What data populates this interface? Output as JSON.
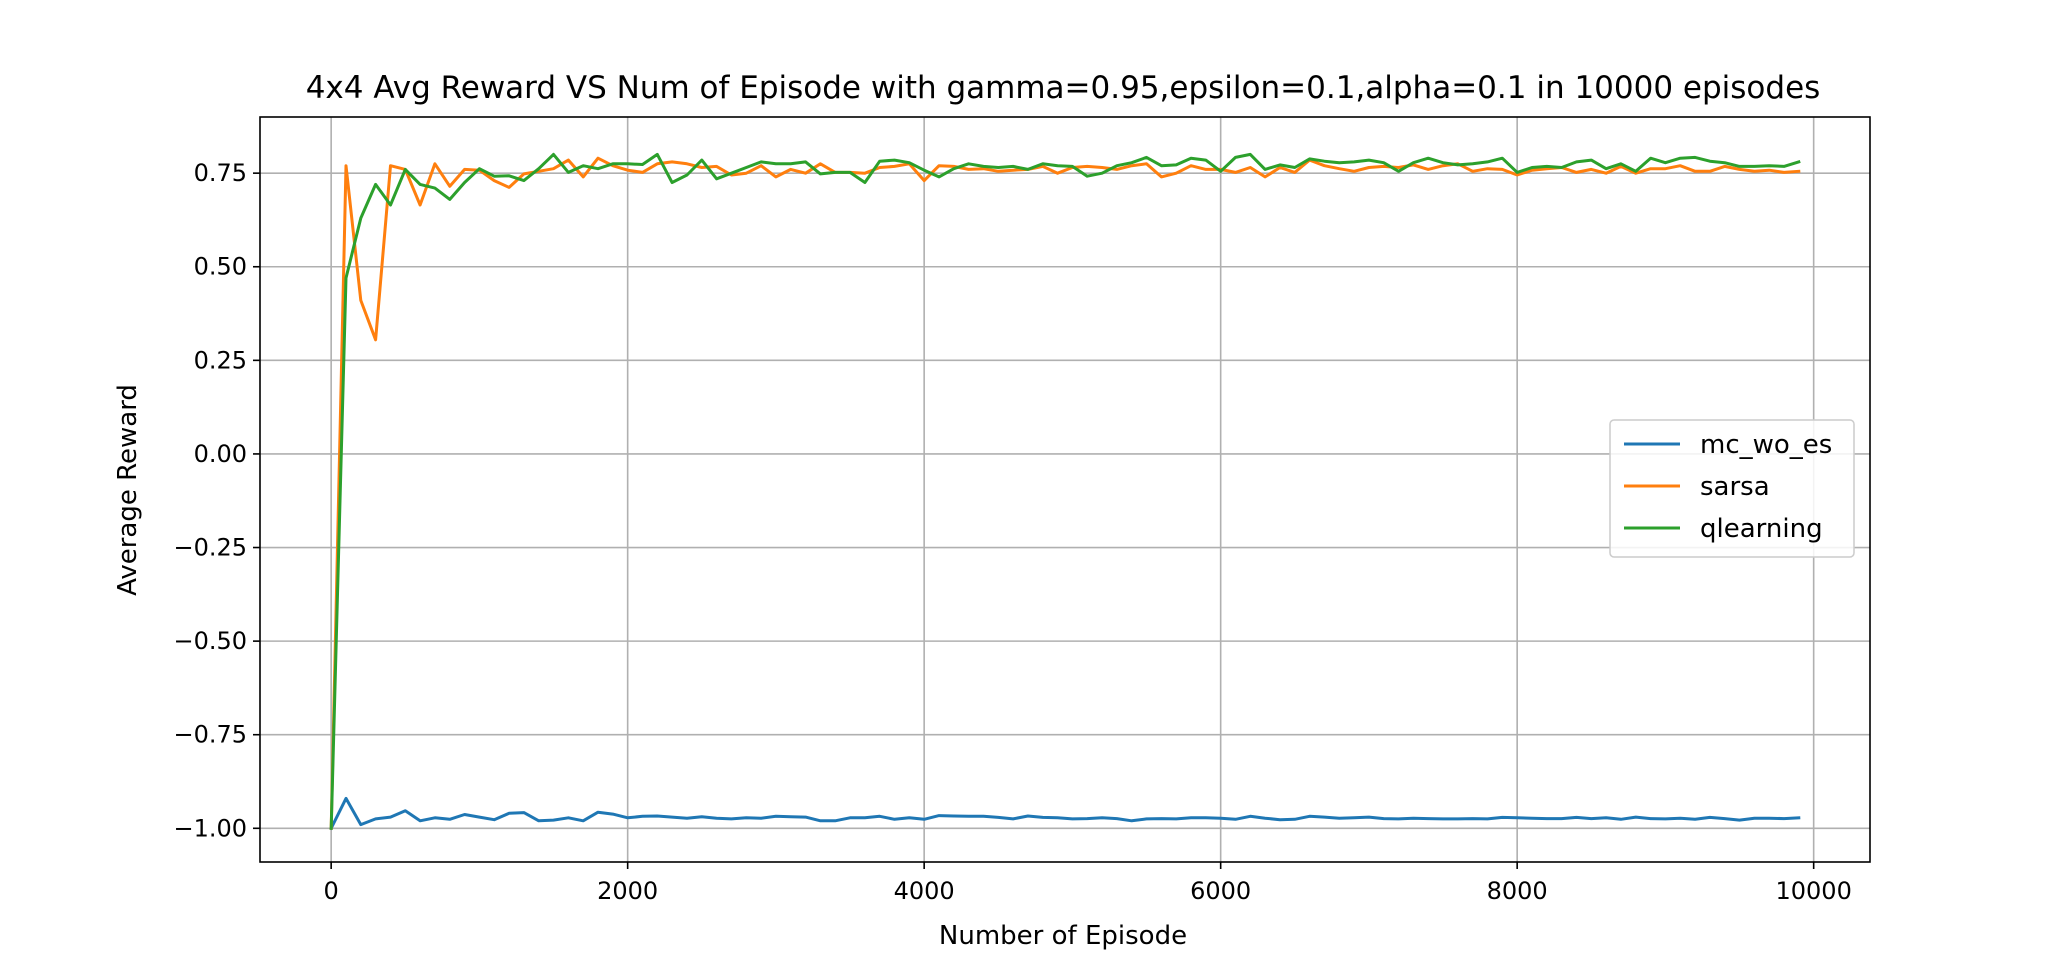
{
  "chart_data": {
    "type": "line",
    "title": "4x4 Avg Reward VS Num of Episode with gamma=0.95,epsilon=0.1,alpha=0.1 in 10000 episodes",
    "xlabel": "Number of Episode",
    "ylabel": "Average Reward",
    "xlim": [
      -480,
      10380
    ],
    "ylim": [
      -1.09,
      0.9
    ],
    "xticks": [
      0,
      2000,
      4000,
      6000,
      8000,
      10000
    ],
    "xtick_labels": [
      "0",
      "2000",
      "4000",
      "6000",
      "8000",
      "10000"
    ],
    "yticks": [
      -1.0,
      -0.75,
      -0.5,
      -0.25,
      0.0,
      0.25,
      0.5,
      0.75
    ],
    "ytick_labels": [
      "−1.00",
      "−0.75",
      "−0.50",
      "−0.25",
      "0.00",
      "0.25",
      "0.50",
      "0.75"
    ],
    "grid": true,
    "legend_position": "center-right",
    "x": [
      0,
      100,
      200,
      300,
      400,
      500,
      600,
      700,
      800,
      900,
      1000,
      1100,
      1200,
      1300,
      1400,
      1500,
      1600,
      1700,
      1800,
      1900,
      2000,
      2100,
      2200,
      2300,
      2400,
      2500,
      2600,
      2700,
      2800,
      2900,
      3000,
      3100,
      3200,
      3300,
      3400,
      3500,
      3600,
      3700,
      3800,
      3900,
      4000,
      4100,
      4200,
      4300,
      4400,
      4500,
      4600,
      4700,
      4800,
      4900,
      5000,
      5100,
      5200,
      5300,
      5400,
      5500,
      5600,
      5700,
      5800,
      5900,
      6000,
      6100,
      6200,
      6300,
      6400,
      6500,
      6600,
      6700,
      6800,
      6900,
      7000,
      7100,
      7200,
      7300,
      7400,
      7500,
      7600,
      7700,
      7800,
      7900,
      8000,
      8100,
      8200,
      8300,
      8400,
      8500,
      8600,
      8700,
      8800,
      8900,
      9000,
      9100,
      9200,
      9300,
      9400,
      9500,
      9600,
      9700,
      9800,
      9900
    ],
    "series": [
      {
        "name": "mc_wo_es",
        "color": "#1f77b4",
        "values": [
          -1.0,
          -0.92,
          -0.99,
          -0.975,
          -0.97,
          -0.953,
          -0.98,
          -0.972,
          -0.976,
          -0.963,
          -0.97,
          -0.977,
          -0.96,
          -0.958,
          -0.98,
          -0.978,
          -0.972,
          -0.98,
          -0.957,
          -0.962,
          -0.972,
          -0.968,
          -0.967,
          -0.97,
          -0.973,
          -0.969,
          -0.973,
          -0.975,
          -0.972,
          -0.973,
          -0.968,
          -0.969,
          -0.97,
          -0.98,
          -0.98,
          -0.972,
          -0.972,
          -0.968,
          -0.976,
          -0.972,
          -0.976,
          -0.966,
          -0.967,
          -0.968,
          -0.968,
          -0.971,
          -0.975,
          -0.967,
          -0.971,
          -0.972,
          -0.975,
          -0.974,
          -0.972,
          -0.974,
          -0.98,
          -0.975,
          -0.974,
          -0.975,
          -0.972,
          -0.972,
          -0.973,
          -0.976,
          -0.968,
          -0.973,
          -0.977,
          -0.976,
          -0.968,
          -0.97,
          -0.973,
          -0.972,
          -0.97,
          -0.974,
          -0.975,
          -0.973,
          -0.974,
          -0.975,
          -0.975,
          -0.974,
          -0.975,
          -0.971,
          -0.972,
          -0.973,
          -0.974,
          -0.974,
          -0.971,
          -0.974,
          -0.972,
          -0.976,
          -0.97,
          -0.974,
          -0.975,
          -0.973,
          -0.976,
          -0.971,
          -0.974,
          -0.978,
          -0.973,
          -0.973,
          -0.974,
          -0.972
        ]
      },
      {
        "name": "sarsa",
        "color": "#ff7f0e",
        "values": [
          -1.0,
          0.77,
          0.41,
          0.305,
          0.77,
          0.76,
          0.665,
          0.775,
          0.715,
          0.76,
          0.758,
          0.73,
          0.712,
          0.748,
          0.755,
          0.762,
          0.785,
          0.74,
          0.79,
          0.77,
          0.758,
          0.752,
          0.775,
          0.78,
          0.775,
          0.765,
          0.768,
          0.745,
          0.75,
          0.77,
          0.74,
          0.76,
          0.75,
          0.775,
          0.752,
          0.752,
          0.75,
          0.765,
          0.768,
          0.775,
          0.73,
          0.77,
          0.768,
          0.76,
          0.762,
          0.755,
          0.758,
          0.76,
          0.768,
          0.75,
          0.765,
          0.768,
          0.765,
          0.76,
          0.77,
          0.775,
          0.74,
          0.75,
          0.77,
          0.76,
          0.76,
          0.752,
          0.765,
          0.74,
          0.765,
          0.752,
          0.785,
          0.77,
          0.762,
          0.755,
          0.765,
          0.768,
          0.765,
          0.772,
          0.76,
          0.77,
          0.775,
          0.755,
          0.762,
          0.76,
          0.745,
          0.758,
          0.762,
          0.765,
          0.752,
          0.76,
          0.75,
          0.768,
          0.75,
          0.762,
          0.762,
          0.77,
          0.755,
          0.755,
          0.768,
          0.76,
          0.755,
          0.758,
          0.752,
          0.755
        ]
      },
      {
        "name": "qlearning",
        "color": "#2ca02c",
        "values": [
          -1.0,
          0.47,
          0.63,
          0.72,
          0.665,
          0.76,
          0.72,
          0.71,
          0.68,
          0.725,
          0.762,
          0.742,
          0.743,
          0.73,
          0.762,
          0.8,
          0.752,
          0.77,
          0.762,
          0.775,
          0.775,
          0.773,
          0.8,
          0.725,
          0.745,
          0.785,
          0.735,
          0.75,
          0.765,
          0.78,
          0.775,
          0.775,
          0.78,
          0.748,
          0.752,
          0.752,
          0.725,
          0.782,
          0.785,
          0.778,
          0.758,
          0.74,
          0.762,
          0.775,
          0.768,
          0.765,
          0.768,
          0.76,
          0.775,
          0.77,
          0.768,
          0.742,
          0.75,
          0.77,
          0.778,
          0.792,
          0.77,
          0.772,
          0.79,
          0.785,
          0.755,
          0.792,
          0.8,
          0.76,
          0.772,
          0.765,
          0.788,
          0.782,
          0.778,
          0.78,
          0.785,
          0.778,
          0.755,
          0.778,
          0.79,
          0.778,
          0.772,
          0.775,
          0.78,
          0.79,
          0.752,
          0.765,
          0.768,
          0.765,
          0.78,
          0.785,
          0.762,
          0.775,
          0.755,
          0.79,
          0.778,
          0.79,
          0.792,
          0.782,
          0.778,
          0.768,
          0.768,
          0.77,
          0.768,
          0.78
        ]
      }
    ]
  }
}
